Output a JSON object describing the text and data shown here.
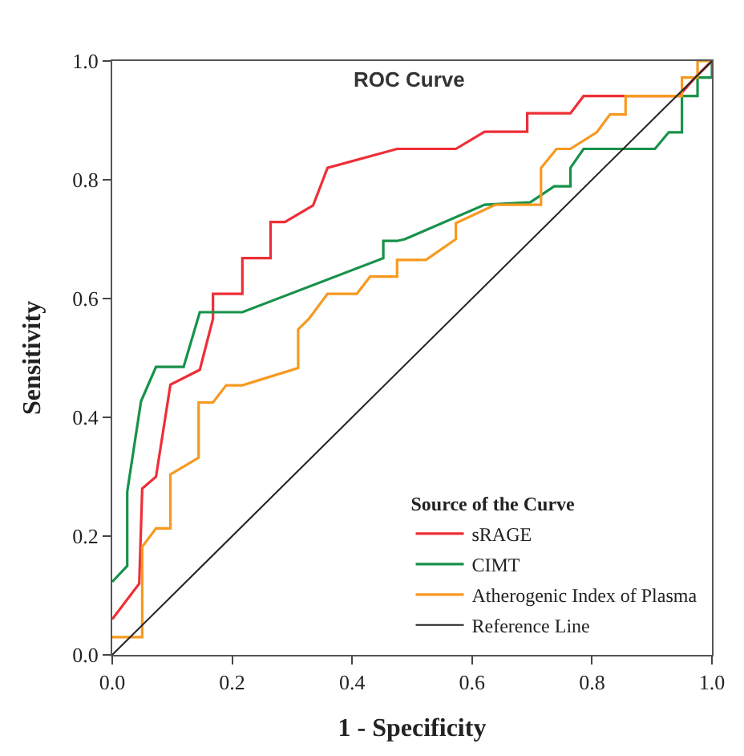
{
  "chart_data": {
    "type": "line",
    "title": "ROC Curve",
    "xlabel": "1 - Specificity",
    "ylabel": "Sensitivity",
    "legend_title": "Source of the Curve",
    "legend": "bottom right",
    "marker": "none",
    "line_style": "solid",
    "xlim": [
      0,
      1
    ],
    "ylim": [
      0,
      1
    ],
    "xticks": [
      {
        "value": 0,
        "label": "0.0"
      },
      0.2,
      0.4,
      0.6,
      0.8,
      {
        "value": 1,
        "label": "1.0"
      }
    ],
    "yticks": [
      {
        "value": 0,
        "label": "0.0"
      },
      0.2,
      0.4,
      0.6,
      0.8,
      {
        "value": 1,
        "label": "1.0"
      }
    ],
    "series": [
      {
        "name": "sRAGE",
        "color": "#ee2e36",
        "x": [
          0,
          0.045,
          0.05,
          0.073,
          0.097,
          0.146,
          0.168,
          0.168,
          0.217,
          0.217,
          0.264,
          0.264,
          0.288,
          0.335,
          0.359,
          0.475,
          0.573,
          0.621,
          0.692,
          0.692,
          0.764,
          0.786,
          0.945,
          0.972,
          1
        ],
        "values": [
          0.06,
          0.12,
          0.28,
          0.3,
          0.455,
          0.48,
          0.566,
          0.608,
          0.608,
          0.668,
          0.668,
          0.729,
          0.729,
          0.757,
          0.82,
          0.852,
          0.852,
          0.881,
          0.881,
          0.912,
          0.912,
          0.941,
          0.941,
          0.972,
          1
        ]
      },
      {
        "name": "CIMT",
        "color": "#17924a",
        "x": [
          0,
          0.025,
          0.025,
          0.048,
          0.073,
          0.119,
          0.146,
          0.217,
          0.452,
          0.452,
          0.475,
          0.488,
          0.621,
          0.697,
          0.737,
          0.764,
          0.764,
          0.786,
          0.905,
          0.928,
          0.95,
          0.95,
          0.976,
          0.976,
          1,
          1
        ],
        "values": [
          0.123,
          0.15,
          0.275,
          0.427,
          0.485,
          0.485,
          0.577,
          0.577,
          0.668,
          0.697,
          0.697,
          0.7,
          0.758,
          0.762,
          0.789,
          0.789,
          0.82,
          0.852,
          0.852,
          0.88,
          0.88,
          0.941,
          0.941,
          0.972,
          0.972,
          1
        ]
      },
      {
        "name": "Atherogenic Index of Plasma",
        "color": "#f7991f",
        "x": [
          0,
          0.05,
          0.05,
          0.073,
          0.097,
          0.097,
          0.144,
          0.144,
          0.168,
          0.19,
          0.217,
          0.31,
          0.31,
          0.328,
          0.359,
          0.408,
          0.43,
          0.452,
          0.475,
          0.475,
          0.523,
          0.573,
          0.573,
          0.639,
          0.715,
          0.715,
          0.741,
          0.764,
          0.808,
          0.83,
          0.856,
          0.856,
          0.95,
          0.95,
          0.976,
          0.976,
          1
        ],
        "values": [
          0.03,
          0.03,
          0.182,
          0.213,
          0.213,
          0.304,
          0.332,
          0.425,
          0.425,
          0.454,
          0.454,
          0.483,
          0.548,
          0.566,
          0.608,
          0.608,
          0.637,
          0.637,
          0.637,
          0.665,
          0.665,
          0.7,
          0.727,
          0.758,
          0.758,
          0.82,
          0.852,
          0.852,
          0.88,
          0.91,
          0.91,
          0.941,
          0.941,
          0.972,
          0.972,
          1,
          1
        ]
      },
      {
        "name": "Reference Line",
        "color": "#222222",
        "x": [
          0,
          1
        ],
        "values": [
          0,
          1
        ]
      }
    ]
  }
}
